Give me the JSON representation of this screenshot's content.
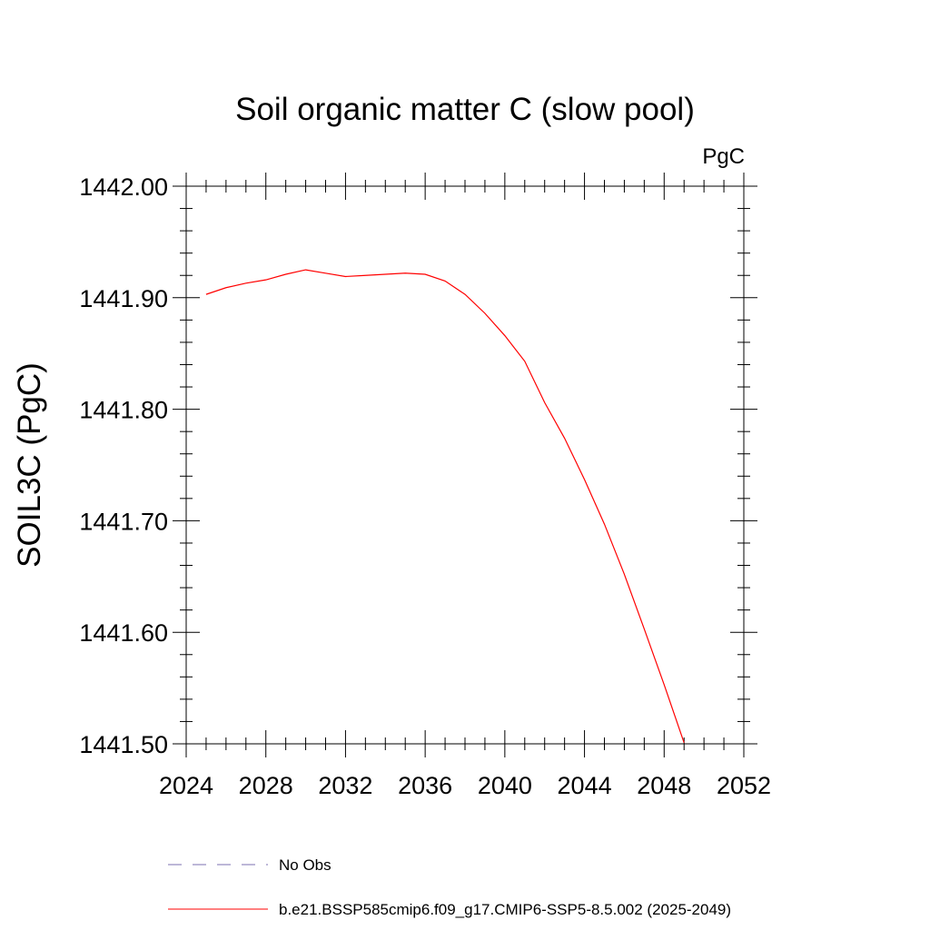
{
  "chart_data": {
    "type": "line",
    "title": "Soil organic matter C (slow pool)",
    "units": "PgC",
    "xlabel": "",
    "ylabel": "SOIL3C  (PgC)",
    "xlim": [
      2024,
      2052
    ],
    "ylim": [
      1441.5,
      1442.0
    ],
    "xticks": [
      2024,
      2028,
      2032,
      2036,
      2040,
      2044,
      2048,
      2052
    ],
    "xtick_labels": [
      "2024",
      "2028",
      "2032",
      "2036",
      "2040",
      "2044",
      "2048",
      "2052"
    ],
    "yticks": [
      1441.5,
      1441.6,
      1441.7,
      1441.8,
      1441.9,
      1442.0
    ],
    "ytick_labels": [
      "1441.50",
      "1441.60",
      "1441.70",
      "1441.80",
      "1441.90",
      "1442.00"
    ],
    "grid": false,
    "legend_placement": "bottom",
    "legend": [
      {
        "label": "No Obs",
        "color": "#7b6fb0",
        "style": "dashed"
      },
      {
        "label": "b.e21.BSSP585cmip6.f09_g17.CMIP6-SSP5-8.5.002 (2025-2049)",
        "color": "#ff0000",
        "style": "solid"
      }
    ],
    "series": [
      {
        "color": "#ff0000",
        "x": [
          2025,
          2026,
          2027,
          2028,
          2029,
          2030,
          2031,
          2032,
          2033,
          2034,
          2035,
          2036,
          2037,
          2038,
          2039,
          2040,
          2041,
          2042,
          2043,
          2044,
          2045,
          2046,
          2047,
          2048,
          2049
        ],
        "y": [
          1441.903,
          1441.909,
          1441.913,
          1441.916,
          1441.921,
          1441.925,
          1441.922,
          1441.919,
          1441.92,
          1441.921,
          1441.922,
          1441.921,
          1441.915,
          1441.903,
          1441.886,
          1441.866,
          1441.843,
          1441.806,
          1441.774,
          1441.737,
          1441.697,
          1441.652,
          1441.603,
          1441.553,
          1441.501
        ]
      }
    ]
  }
}
